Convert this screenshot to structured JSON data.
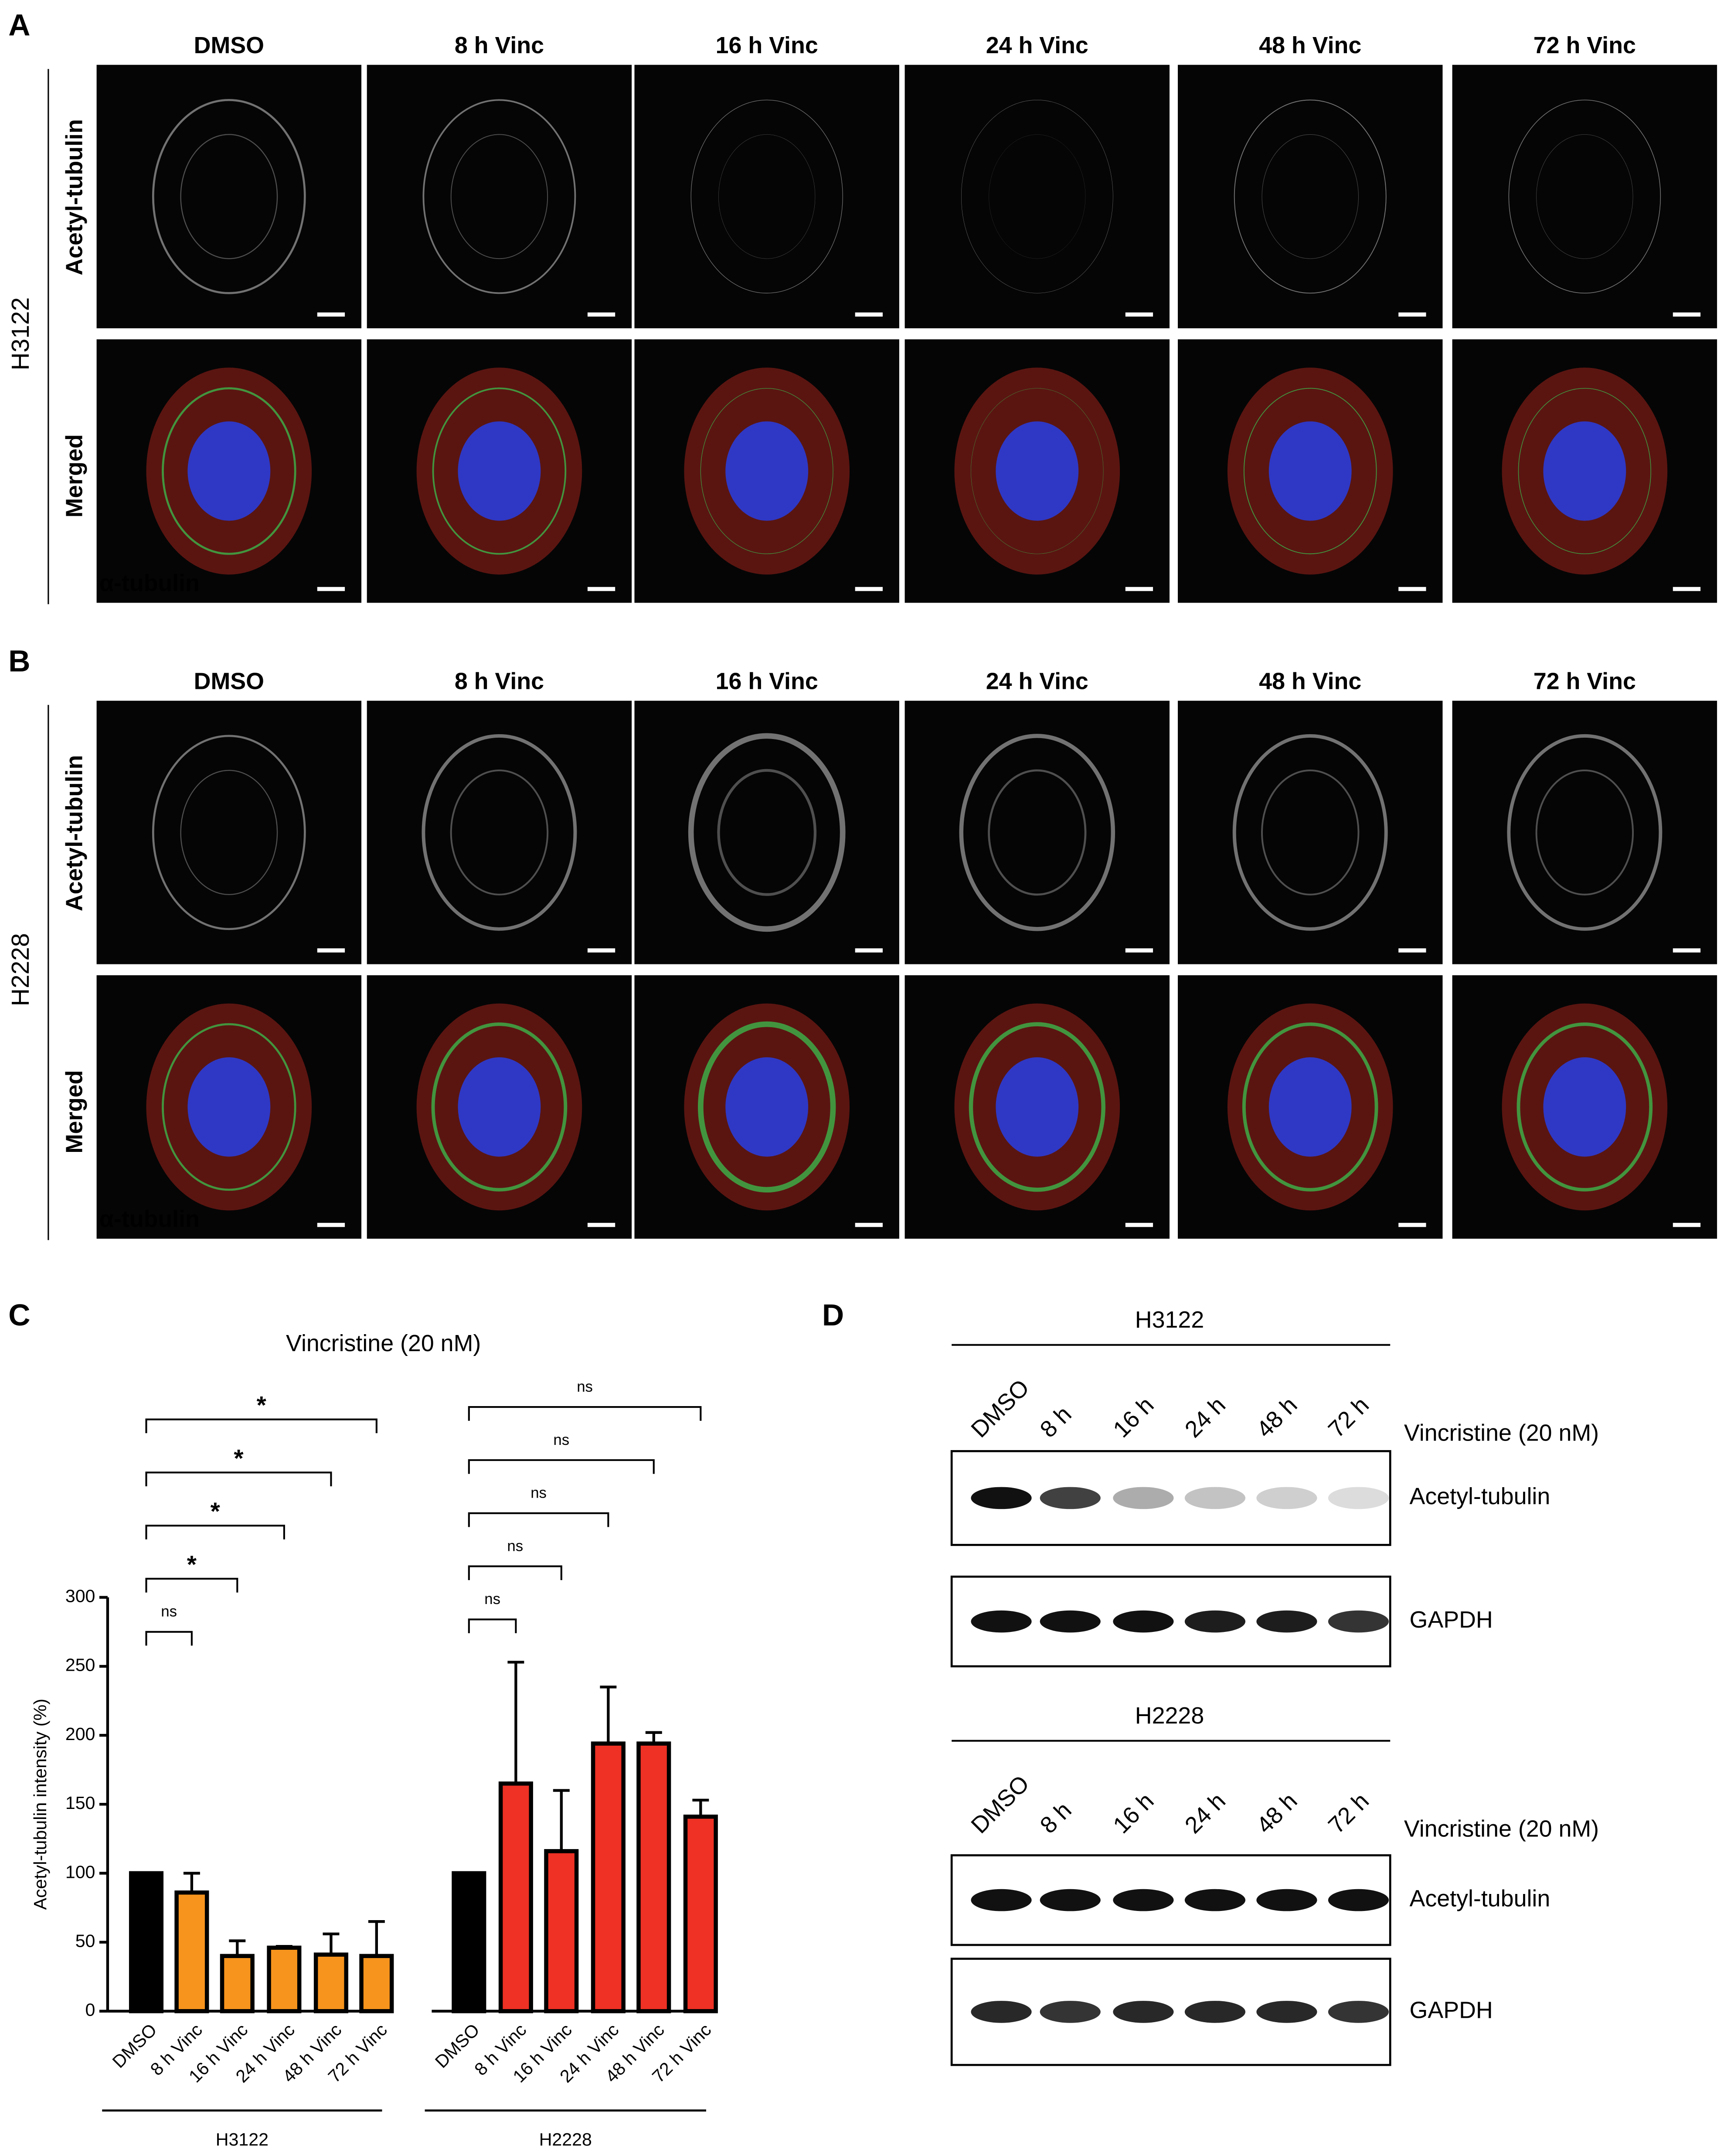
{
  "panel_a": {
    "letter": "A",
    "cell_line": "H3122",
    "columns": [
      "DMSO",
      "8 h Vinc",
      "16 h Vinc",
      "24 h Vinc",
      "48 h Vinc",
      "72 h Vinc"
    ],
    "row_labels": [
      "Acetyl-tubulin",
      "Merged"
    ],
    "overlay_label": "α-tubulin"
  },
  "panel_b": {
    "letter": "B",
    "cell_line": "H2228",
    "columns": [
      "DMSO",
      "8 h Vinc",
      "16 h Vinc",
      "24 h Vinc",
      "48 h Vinc",
      "72 h Vinc"
    ],
    "row_labels": [
      "Acetyl-tubulin",
      "Merged"
    ],
    "overlay_label": "α-tubulin"
  },
  "chart_data": {
    "type": "bar",
    "letter": "C",
    "title": "Vincristine (20 nM)",
    "y_label": "Acetyl-tubulin intensity (%)",
    "ylim": [
      0,
      300
    ],
    "yticks": [
      0,
      50,
      100,
      150,
      200,
      250,
      300
    ],
    "control_color": "#000000",
    "series": [
      {
        "name": "H3122",
        "color": "#f7941d",
        "categories": [
          "DMSO",
          "8 h Vinc",
          "16 h Vinc",
          "24 h Vinc",
          "48 h Vinc",
          "72 h Vinc"
        ],
        "values": [
          100,
          86,
          40,
          46,
          41,
          40
        ],
        "errors": [
          0,
          14,
          11,
          1,
          15,
          25
        ],
        "comparison_labels": [
          "ns",
          "*",
          "*",
          "*",
          "*"
        ]
      },
      {
        "name": "H2228",
        "color": "#ee3124",
        "categories": [
          "DMSO",
          "8 h Vinc",
          "16 h Vinc",
          "24 h Vinc",
          "48 h Vinc",
          "72 h Vinc"
        ],
        "values": [
          100,
          165,
          116,
          194,
          194,
          141
        ],
        "errors": [
          0,
          88,
          44,
          41,
          8,
          12
        ],
        "comparison_labels": [
          "ns",
          "ns",
          "ns",
          "ns",
          "ns"
        ]
      }
    ]
  },
  "panel_d": {
    "letter": "D",
    "blots": [
      {
        "cell_line": "H3122",
        "lanes": [
          "DMSO",
          "8 h",
          "16 h",
          "24 h",
          "48 h",
          "72 h"
        ],
        "treatment": "Vincristine (20 nM)",
        "bands": [
          "Acetyl-tubulin",
          "GAPDH"
        ]
      },
      {
        "cell_line": "H2228",
        "lanes": [
          "DMSO",
          "8 h",
          "16 h",
          "24 h",
          "48 h",
          "72 h"
        ],
        "treatment": "Vincristine (20 nM)",
        "bands": [
          "Acetyl-tubulin",
          "GAPDH"
        ]
      }
    ]
  }
}
